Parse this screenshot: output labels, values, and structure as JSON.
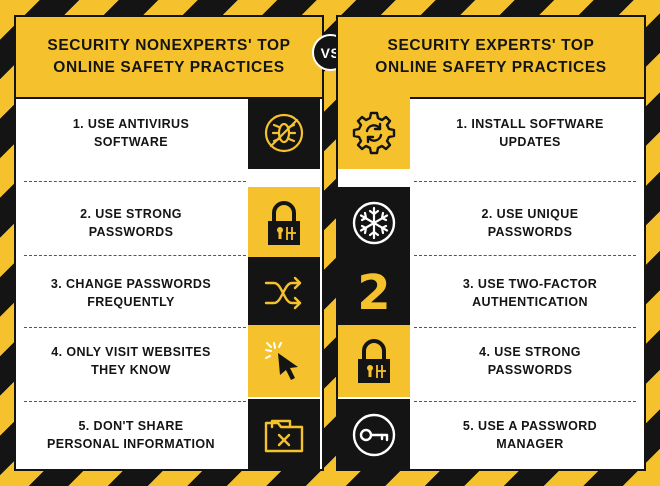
{
  "left": {
    "title_line1": "SECURITY NONEXPERTS' TOP",
    "title_line2": "ONLINE SAFETY PRACTICES",
    "items": [
      {
        "line1": "1. USE ANTIVIRUS",
        "line2": "SOFTWARE",
        "icon": "no-bug-icon"
      },
      {
        "line1": "2. USE STRONG",
        "line2": "PASSWORDS",
        "icon": "padlock-icon"
      },
      {
        "line1": "3. CHANGE PASSWORDS",
        "line2": "FREQUENTLY",
        "icon": "shuffle-icon"
      },
      {
        "line1": "4. ONLY VISIT WEBSITES",
        "line2": "THEY KNOW",
        "icon": "cursor-click-icon"
      },
      {
        "line1": "5. DON'T SHARE",
        "line2": "PERSONAL INFORMATION",
        "icon": "folder-x-icon"
      }
    ]
  },
  "vs_label": "VS",
  "right": {
    "title_line1": "SECURITY EXPERTS' TOP",
    "title_line2": "ONLINE SAFETY PRACTICES",
    "items": [
      {
        "line1": "1. INSTALL SOFTWARE",
        "line2": "UPDATES",
        "icon": "gear-refresh-icon"
      },
      {
        "line1": "2. USE UNIQUE",
        "line2": "PASSWORDS",
        "icon": "snowflake-icon"
      },
      {
        "line1": "3. USE TWO-FACTOR",
        "line2": "AUTHENTICATION",
        "icon": "number-two-icon",
        "glyph": "2"
      },
      {
        "line1": "4. USE STRONG",
        "line2": "PASSWORDS",
        "icon": "padlock-icon"
      },
      {
        "line1": "5. USE A PASSWORD",
        "line2": "MANAGER",
        "icon": "key-icon"
      }
    ]
  },
  "colors": {
    "yellow": "#f5c22d",
    "black": "#141414",
    "white": "#ffffff"
  }
}
